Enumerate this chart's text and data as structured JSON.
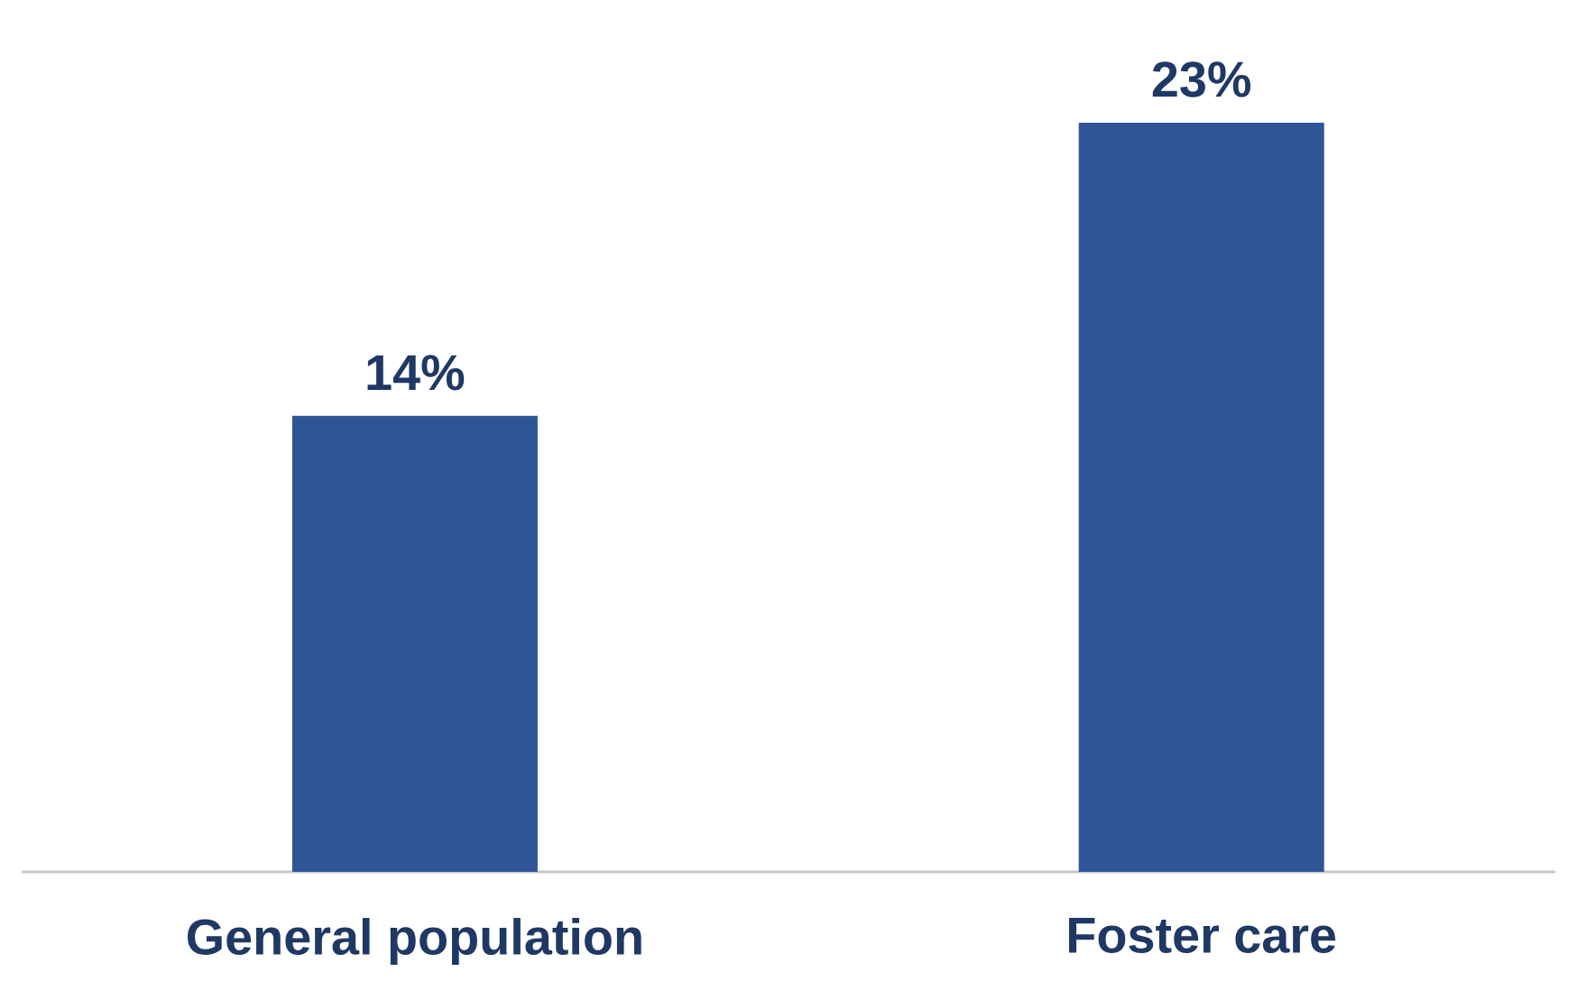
{
  "chart_data": {
    "type": "bar",
    "categories": [
      "General population",
      "Foster care"
    ],
    "values": [
      14,
      23
    ],
    "value_labels": [
      "14%",
      "23%"
    ],
    "color": "#2f5597"
  }
}
